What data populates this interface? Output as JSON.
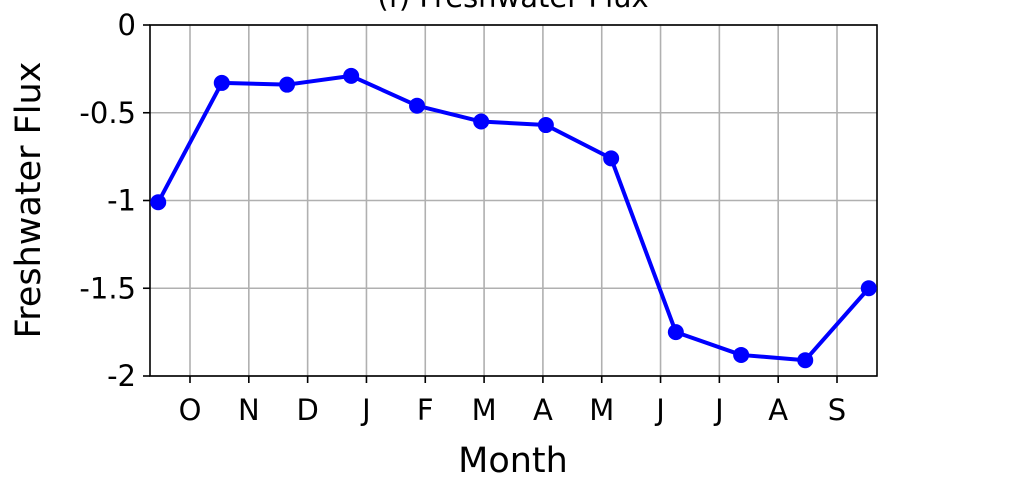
{
  "chart_data": {
    "type": "line",
    "title": "(f) Freshwater Flux",
    "x_label": "Month",
    "y_label": "Freshwater Flux",
    "x": [
      -0.54,
      0.54,
      1.65,
      2.74,
      3.86,
      4.95,
      6.05,
      7.16,
      8.26,
      9.37,
      10.46,
      11.54
    ],
    "series": [
      {
        "name": "Freshwater Flux",
        "color": "#0000ff",
        "values": [
          -1.01,
          -0.33,
          -0.34,
          -0.29,
          -0.46,
          -0.55,
          -0.57,
          -0.76,
          -1.75,
          -1.88,
          -1.91,
          -1.5
        ]
      }
    ],
    "xlim": [
      -0.68,
      11.68
    ],
    "xticks": [
      {
        "value": 0,
        "label": "O"
      },
      {
        "value": 1,
        "label": "N"
      },
      {
        "value": 2,
        "label": "D"
      },
      {
        "value": 3,
        "label": "J"
      },
      {
        "value": 4,
        "label": "F"
      },
      {
        "value": 5,
        "label": "M"
      },
      {
        "value": 6,
        "label": "A"
      },
      {
        "value": 7,
        "label": "M"
      },
      {
        "value": 8,
        "label": "J"
      },
      {
        "value": 9,
        "label": "J"
      },
      {
        "value": 10,
        "label": "A"
      },
      {
        "value": 11,
        "label": "S"
      }
    ],
    "ylim": [
      -2,
      0
    ],
    "yticks": [
      0,
      -0.5,
      -1,
      -1.5,
      -2
    ],
    "grid": true
  }
}
